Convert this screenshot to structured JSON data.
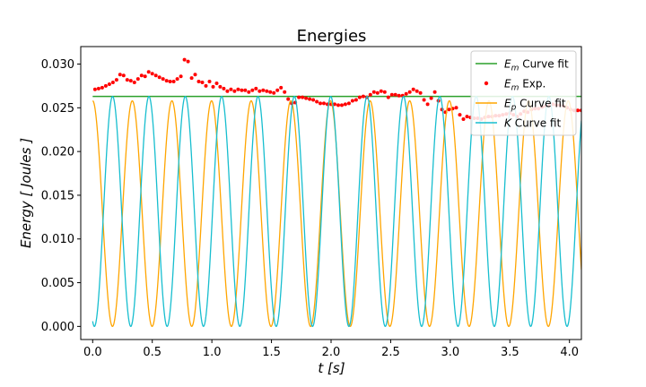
{
  "chart_data": {
    "type": "line",
    "title": "Energies",
    "xlabel": "t [s]",
    "ylabel": "Energy [ Joules ]",
    "xlim": [
      -0.1,
      4.1
    ],
    "ylim": [
      -0.0015,
      0.032
    ],
    "xticks": [
      "0.0",
      "0.5",
      "1.0",
      "1.5",
      "2.0",
      "2.5",
      "3.0",
      "3.5",
      "4.0"
    ],
    "yticks": [
      "0.000",
      "0.005",
      "0.010",
      "0.015",
      "0.020",
      "0.025",
      "0.030"
    ],
    "grid": false,
    "legend_position": "top-right",
    "colors": {
      "em_fit": "#2ca02c",
      "em_exp": "#ff0000",
      "ep_fit": "#ffa500",
      "k_fit": "#17becf"
    },
    "series": [
      {
        "key": "em_fit",
        "name": "Em Curve fit",
        "label_main": "E",
        "label_sub": "m",
        "label_rest": " Curve fit",
        "kind": "line",
        "x": [
          0.0,
          4.1
        ],
        "y": [
          0.0263,
          0.0263
        ]
      },
      {
        "key": "em_exp",
        "name": "Em Exp.",
        "label_main": "E",
        "label_sub": "m",
        "label_rest": " Exp.",
        "kind": "scatter",
        "x": [
          0.02,
          0.05,
          0.08,
          0.11,
          0.14,
          0.17,
          0.2,
          0.23,
          0.26,
          0.29,
          0.32,
          0.35,
          0.38,
          0.41,
          0.44,
          0.47,
          0.5,
          0.53,
          0.56,
          0.59,
          0.62,
          0.65,
          0.68,
          0.71,
          0.74,
          0.77,
          0.8,
          0.83,
          0.86,
          0.89,
          0.92,
          0.95,
          0.98,
          1.01,
          1.04,
          1.07,
          1.1,
          1.13,
          1.16,
          1.19,
          1.22,
          1.25,
          1.28,
          1.31,
          1.34,
          1.37,
          1.4,
          1.43,
          1.46,
          1.49,
          1.52,
          1.55,
          1.58,
          1.61,
          1.64,
          1.67,
          1.7,
          1.73,
          1.76,
          1.79,
          1.82,
          1.85,
          1.88,
          1.91,
          1.94,
          1.97,
          2.0,
          2.03,
          2.06,
          2.09,
          2.12,
          2.15,
          2.18,
          2.21,
          2.24,
          2.27,
          2.3,
          2.33,
          2.36,
          2.39,
          2.42,
          2.45,
          2.48,
          2.51,
          2.54,
          2.57,
          2.6,
          2.63,
          2.66,
          2.69,
          2.72,
          2.75,
          2.78,
          2.81,
          2.84,
          2.87,
          2.9,
          2.93,
          2.96,
          2.99,
          3.02,
          3.05,
          3.08,
          3.11,
          3.14,
          3.17,
          3.2,
          3.23,
          3.26,
          3.29,
          3.32,
          3.35,
          3.38,
          3.41,
          3.44,
          3.47,
          3.5,
          3.53,
          3.56,
          3.59,
          3.62,
          3.65,
          3.68,
          3.71,
          3.74,
          3.77,
          3.8,
          3.83,
          3.86,
          3.89,
          3.92,
          3.95,
          3.98,
          4.01,
          4.04,
          4.07,
          4.1
        ],
        "y": [
          0.0271,
          0.0272,
          0.0273,
          0.0275,
          0.0277,
          0.0279,
          0.0282,
          0.0288,
          0.0287,
          0.0282,
          0.0281,
          0.0279,
          0.0283,
          0.0287,
          0.0286,
          0.0291,
          0.0289,
          0.0287,
          0.0285,
          0.0283,
          0.0281,
          0.028,
          0.028,
          0.0283,
          0.0286,
          0.0305,
          0.0303,
          0.0284,
          0.0288,
          0.028,
          0.0279,
          0.0275,
          0.028,
          0.0274,
          0.0278,
          0.0274,
          0.0272,
          0.0269,
          0.0271,
          0.0269,
          0.0271,
          0.027,
          0.027,
          0.0268,
          0.027,
          0.0272,
          0.0269,
          0.027,
          0.0269,
          0.0268,
          0.0267,
          0.027,
          0.0273,
          0.0268,
          0.026,
          0.0255,
          0.0256,
          0.0262,
          0.0262,
          0.0261,
          0.026,
          0.0259,
          0.0257,
          0.0255,
          0.0255,
          0.0254,
          0.0254,
          0.0254,
          0.0253,
          0.0253,
          0.0254,
          0.0255,
          0.0258,
          0.0259,
          0.0262,
          0.0263,
          0.0262,
          0.0265,
          0.0268,
          0.0267,
          0.0269,
          0.0268,
          0.0262,
          0.0265,
          0.0265,
          0.0264,
          0.0264,
          0.0266,
          0.0268,
          0.0271,
          0.0269,
          0.0267,
          0.0259,
          0.0254,
          0.0261,
          0.0268,
          0.0258,
          0.0248,
          0.0245,
          0.0248,
          0.0249,
          0.025,
          0.0242,
          0.0237,
          0.024,
          0.0239,
          0.0238,
          0.0238,
          0.0237,
          0.0239,
          0.024,
          0.024,
          0.0241,
          0.0241,
          0.0242,
          0.0243,
          0.0244,
          0.0242,
          0.024,
          0.0243,
          0.0246,
          0.0245,
          0.0248,
          0.0249,
          0.0249,
          0.0251,
          0.0252,
          0.0253,
          0.0254,
          0.0253,
          0.0253,
          0.0252,
          0.025,
          0.0248,
          0.0247,
          0.0247,
          0.0247
        ]
      },
      {
        "key": "ep_fit",
        "name": "Ep Curve fit",
        "label_main": "E",
        "label_sub": "p",
        "label_rest": " Curve fit",
        "kind": "cos",
        "amplitude": 0.0258,
        "omega": 9.45,
        "phase": 0.0
      },
      {
        "key": "k_fit",
        "name": "K Curve fit",
        "label_main": "K",
        "label_sub": "",
        "label_rest": " Curve fit",
        "kind": "sin",
        "amplitude": 0.0263,
        "omega": 10.3,
        "phase": -0.15
      }
    ]
  }
}
